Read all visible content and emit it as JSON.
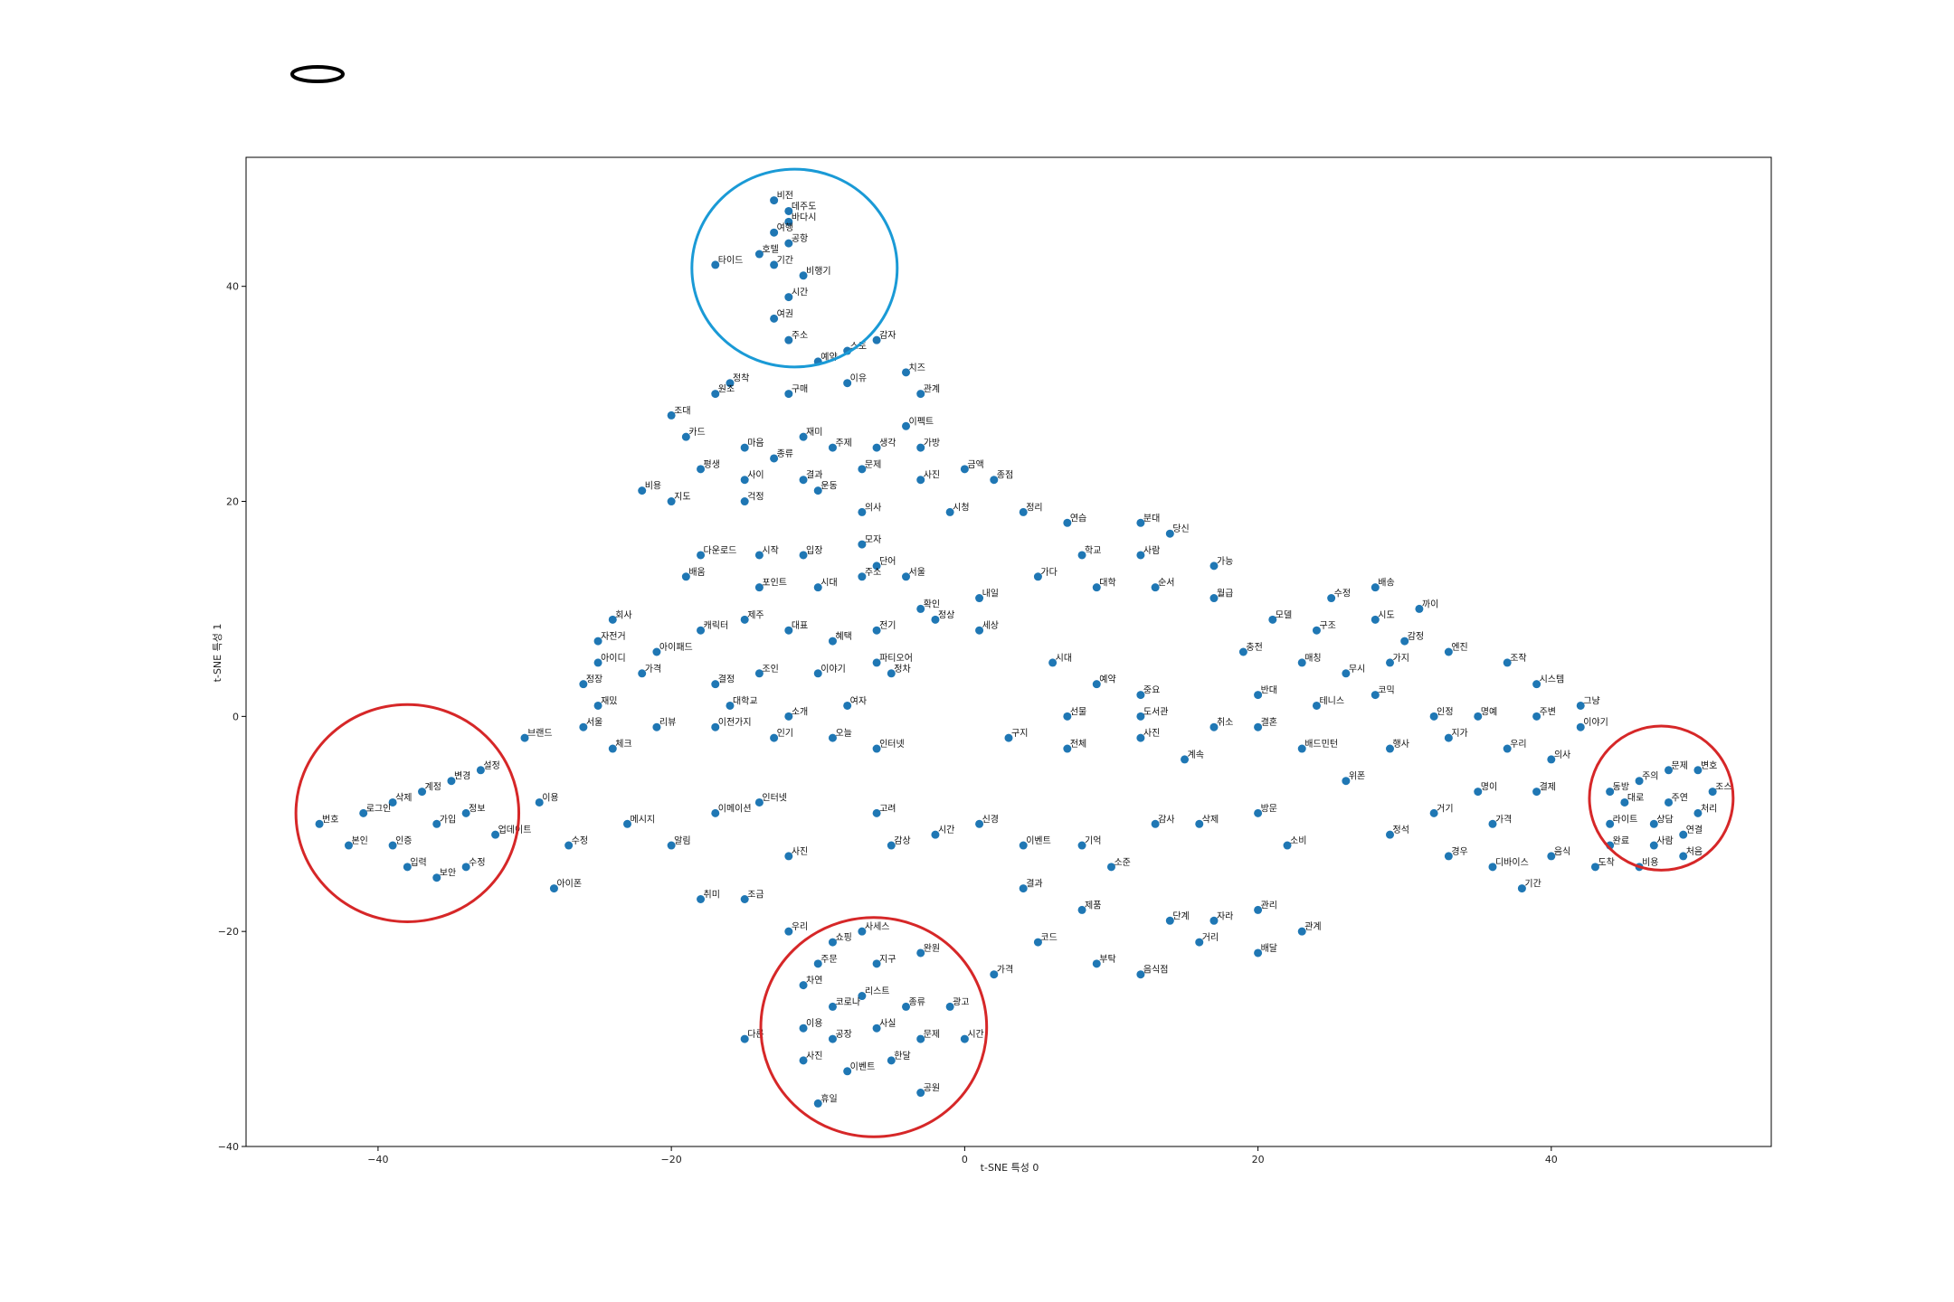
{
  "chart_data": {
    "type": "scatter",
    "xlabel": "t-SNE 특성 0",
    "ylabel": "t-SNE 특성 1",
    "xlim": [
      -49,
      55
    ],
    "ylim": [
      -40,
      52
    ],
    "xticks": [
      -40,
      -20,
      0,
      20,
      40
    ],
    "yticks": [
      -40,
      -20,
      0,
      20,
      40
    ],
    "grid": false,
    "marker_color": "#1f77b4",
    "points": [
      {
        "x": -13,
        "y": 48,
        "label": "비전"
      },
      {
        "x": -12,
        "y": 47,
        "label": "데주도"
      },
      {
        "x": -12,
        "y": 46,
        "label": "바다시"
      },
      {
        "x": -13,
        "y": 45,
        "label": "여행"
      },
      {
        "x": -12,
        "y": 44,
        "label": "공항"
      },
      {
        "x": -17,
        "y": 42,
        "label": "타이드"
      },
      {
        "x": -14,
        "y": 43,
        "label": "호텔"
      },
      {
        "x": -13,
        "y": 42,
        "label": "기간"
      },
      {
        "x": -11,
        "y": 41,
        "label": "비행기"
      },
      {
        "x": -12,
        "y": 39,
        "label": "시간"
      },
      {
        "x": -13,
        "y": 37,
        "label": "여권"
      },
      {
        "x": -12,
        "y": 35,
        "label": "주소"
      },
      {
        "x": -10,
        "y": 33,
        "label": "예약"
      },
      {
        "x": -8,
        "y": 34,
        "label": "스토"
      },
      {
        "x": -6,
        "y": 35,
        "label": "감자"
      },
      {
        "x": -16,
        "y": 31,
        "label": "정착"
      },
      {
        "x": -17,
        "y": 30,
        "label": "원조"
      },
      {
        "x": -12,
        "y": 30,
        "label": "구매"
      },
      {
        "x": -8,
        "y": 31,
        "label": "이유"
      },
      {
        "x": -4,
        "y": 32,
        "label": "치즈"
      },
      {
        "x": -3,
        "y": 30,
        "label": "관계"
      },
      {
        "x": -20,
        "y": 28,
        "label": "조대"
      },
      {
        "x": -19,
        "y": 26,
        "label": "카드"
      },
      {
        "x": -11,
        "y": 26,
        "label": "재미"
      },
      {
        "x": -4,
        "y": 27,
        "label": "이펙트"
      },
      {
        "x": -15,
        "y": 25,
        "label": "마음"
      },
      {
        "x": -13,
        "y": 24,
        "label": "종류"
      },
      {
        "x": -9,
        "y": 25,
        "label": "주제"
      },
      {
        "x": -6,
        "y": 25,
        "label": "생각"
      },
      {
        "x": -3,
        "y": 25,
        "label": "가방"
      },
      {
        "x": -18,
        "y": 23,
        "label": "평생"
      },
      {
        "x": -15,
        "y": 22,
        "label": "사이"
      },
      {
        "x": -11,
        "y": 22,
        "label": "결과"
      },
      {
        "x": -7,
        "y": 23,
        "label": "문제"
      },
      {
        "x": -3,
        "y": 22,
        "label": "사진"
      },
      {
        "x": 0,
        "y": 23,
        "label": "금액"
      },
      {
        "x": 2,
        "y": 22,
        "label": "종점"
      },
      {
        "x": -22,
        "y": 21,
        "label": "비용"
      },
      {
        "x": -20,
        "y": 20,
        "label": "지도"
      },
      {
        "x": -15,
        "y": 20,
        "label": "걱정"
      },
      {
        "x": -10,
        "y": 21,
        "label": "운동"
      },
      {
        "x": -7,
        "y": 19,
        "label": "의사"
      },
      {
        "x": -1,
        "y": 19,
        "label": "시청"
      },
      {
        "x": 4,
        "y": 19,
        "label": "정리"
      },
      {
        "x": 7,
        "y": 18,
        "label": "연습"
      },
      {
        "x": 12,
        "y": 18,
        "label": "분대"
      },
      {
        "x": 14,
        "y": 17,
        "label": "당신"
      },
      {
        "x": 8,
        "y": 15,
        "label": "학교"
      },
      {
        "x": 12,
        "y": 15,
        "label": "사람"
      },
      {
        "x": 17,
        "y": 14,
        "label": "가능"
      },
      {
        "x": -18,
        "y": 15,
        "label": "다운로드"
      },
      {
        "x": -14,
        "y": 15,
        "label": "시작"
      },
      {
        "x": -11,
        "y": 15,
        "label": "입장"
      },
      {
        "x": -7,
        "y": 16,
        "label": "모자"
      },
      {
        "x": -6,
        "y": 14,
        "label": "단어"
      },
      {
        "x": -19,
        "y": 13,
        "label": "배움"
      },
      {
        "x": -14,
        "y": 12,
        "label": "포인트"
      },
      {
        "x": -10,
        "y": 12,
        "label": "시대"
      },
      {
        "x": -7,
        "y": 13,
        "label": "주소"
      },
      {
        "x": -4,
        "y": 13,
        "label": "서울"
      },
      {
        "x": -3,
        "y": 10,
        "label": "확인"
      },
      {
        "x": 1,
        "y": 11,
        "label": "내일"
      },
      {
        "x": 5,
        "y": 13,
        "label": "가다"
      },
      {
        "x": 9,
        "y": 12,
        "label": "대학"
      },
      {
        "x": 13,
        "y": 12,
        "label": "순서"
      },
      {
        "x": 17,
        "y": 11,
        "label": "월급"
      },
      {
        "x": -24,
        "y": 9,
        "label": "회사"
      },
      {
        "x": -25,
        "y": 7,
        "label": "자전거"
      },
      {
        "x": -25,
        "y": 5,
        "label": "아이디"
      },
      {
        "x": -21,
        "y": 6,
        "label": "아이패드"
      },
      {
        "x": -18,
        "y": 8,
        "label": "캐릭터"
      },
      {
        "x": -15,
        "y": 9,
        "label": "제주"
      },
      {
        "x": -12,
        "y": 8,
        "label": "대표"
      },
      {
        "x": -9,
        "y": 7,
        "label": "혜택"
      },
      {
        "x": -6,
        "y": 8,
        "label": "전기"
      },
      {
        "x": -2,
        "y": 9,
        "label": "정상"
      },
      {
        "x": 1,
        "y": 8,
        "label": "세상"
      },
      {
        "x": -26,
        "y": 3,
        "label": "정장"
      },
      {
        "x": -22,
        "y": 4,
        "label": "가격"
      },
      {
        "x": -17,
        "y": 3,
        "label": "결정"
      },
      {
        "x": -14,
        "y": 4,
        "label": "조인"
      },
      {
        "x": -10,
        "y": 4,
        "label": "이야기"
      },
      {
        "x": -6,
        "y": 5,
        "label": "파티오어"
      },
      {
        "x": -5,
        "y": 4,
        "label": "정차"
      },
      {
        "x": 6,
        "y": 5,
        "label": "시대"
      },
      {
        "x": 9,
        "y": 3,
        "label": "예약"
      },
      {
        "x": 12,
        "y": 2,
        "label": "중요"
      },
      {
        "x": -25,
        "y": 1,
        "label": "재밌"
      },
      {
        "x": -16,
        "y": 1,
        "label": "대학교"
      },
      {
        "x": -12,
        "y": 0,
        "label": "소개"
      },
      {
        "x": -8,
        "y": 1,
        "label": "여자"
      },
      {
        "x": 7,
        "y": 0,
        "label": "선물"
      },
      {
        "x": 12,
        "y": 0,
        "label": "도서관"
      },
      {
        "x": 17,
        "y": -1,
        "label": "취소"
      },
      {
        "x": -30,
        "y": -2,
        "label": "브랜드"
      },
      {
        "x": -26,
        "y": -1,
        "label": "서울"
      },
      {
        "x": -24,
        "y": -3,
        "label": "체크"
      },
      {
        "x": -21,
        "y": -1,
        "label": "리뷰"
      },
      {
        "x": -17,
        "y": -1,
        "label": "이전가지"
      },
      {
        "x": -13,
        "y": -2,
        "label": "인기"
      },
      {
        "x": -9,
        "y": -2,
        "label": "오늘"
      },
      {
        "x": -6,
        "y": -3,
        "label": "인터넷"
      },
      {
        "x": 3,
        "y": -2,
        "label": "구지"
      },
      {
        "x": 7,
        "y": -3,
        "label": "전체"
      },
      {
        "x": 12,
        "y": -2,
        "label": "사진"
      },
      {
        "x": 15,
        "y": -4,
        "label": "계속"
      },
      {
        "x": 20,
        "y": -1,
        "label": "결혼"
      },
      {
        "x": -44,
        "y": -10,
        "label": "번호"
      },
      {
        "x": -41,
        "y": -9,
        "label": "로그인"
      },
      {
        "x": -39,
        "y": -8,
        "label": "삭제"
      },
      {
        "x": -37,
        "y": -7,
        "label": "계정"
      },
      {
        "x": -35,
        "y": -6,
        "label": "변경"
      },
      {
        "x": -33,
        "y": -5,
        "label": "설정"
      },
      {
        "x": -42,
        "y": -12,
        "label": "본인"
      },
      {
        "x": -39,
        "y": -12,
        "label": "인증"
      },
      {
        "x": -38,
        "y": -14,
        "label": "입력"
      },
      {
        "x": -36,
        "y": -10,
        "label": "가입"
      },
      {
        "x": -34,
        "y": -9,
        "label": "정보"
      },
      {
        "x": -32,
        "y": -11,
        "label": "업데이트"
      },
      {
        "x": -36,
        "y": -15,
        "label": "보안"
      },
      {
        "x": -34,
        "y": -14,
        "label": "수정"
      },
      {
        "x": -29,
        "y": -8,
        "label": "이용"
      },
      {
        "x": -27,
        "y": -12,
        "label": "수정"
      },
      {
        "x": -28,
        "y": -16,
        "label": "아이폰"
      },
      {
        "x": -23,
        "y": -10,
        "label": "메시지"
      },
      {
        "x": -20,
        "y": -12,
        "label": "알림"
      },
      {
        "x": -17,
        "y": -9,
        "label": "이메이션"
      },
      {
        "x": -14,
        "y": -8,
        "label": "인터넷"
      },
      {
        "x": -12,
        "y": -13,
        "label": "사진"
      },
      {
        "x": -18,
        "y": -17,
        "label": "취미"
      },
      {
        "x": -15,
        "y": -17,
        "label": "조금"
      },
      {
        "x": -6,
        "y": -9,
        "label": "고려"
      },
      {
        "x": -5,
        "y": -12,
        "label": "감상"
      },
      {
        "x": -2,
        "y": -11,
        "label": "시간"
      },
      {
        "x": 1,
        "y": -10,
        "label": "신경"
      },
      {
        "x": 4,
        "y": -12,
        "label": "이벤트"
      },
      {
        "x": 8,
        "y": -12,
        "label": "기억"
      },
      {
        "x": 13,
        "y": -10,
        "label": "감사"
      },
      {
        "x": 16,
        "y": -10,
        "label": "삭제"
      },
      {
        "x": 20,
        "y": -9,
        "label": "방문"
      },
      {
        "x": 22,
        "y": -12,
        "label": "소비"
      },
      {
        "x": 10,
        "y": -14,
        "label": "소준"
      },
      {
        "x": 4,
        "y": -16,
        "label": "결과"
      },
      {
        "x": 8,
        "y": -18,
        "label": "제품"
      },
      {
        "x": 14,
        "y": -19,
        "label": "단계"
      },
      {
        "x": 17,
        "y": -19,
        "label": "자라"
      },
      {
        "x": 20,
        "y": -18,
        "label": "관리"
      },
      {
        "x": 23,
        "y": -20,
        "label": "관계"
      },
      {
        "x": 5,
        "y": -21,
        "label": "코드"
      },
      {
        "x": 9,
        "y": -23,
        "label": "부탁"
      },
      {
        "x": 12,
        "y": -24,
        "label": "음식점"
      },
      {
        "x": 16,
        "y": -21,
        "label": "거리"
      },
      {
        "x": 20,
        "y": -22,
        "label": "배달"
      },
      {
        "x": 2,
        "y": -24,
        "label": "가격"
      },
      {
        "x": -12,
        "y": -20,
        "label": "우리"
      },
      {
        "x": -9,
        "y": -21,
        "label": "쇼핑"
      },
      {
        "x": -7,
        "y": -20,
        "label": "사세스"
      },
      {
        "x": -10,
        "y": -23,
        "label": "주문"
      },
      {
        "x": -6,
        "y": -23,
        "label": "지구"
      },
      {
        "x": -3,
        "y": -22,
        "label": "완원"
      },
      {
        "x": -11,
        "y": -25,
        "label": "차연"
      },
      {
        "x": -9,
        "y": -27,
        "label": "코로나"
      },
      {
        "x": -7,
        "y": -26,
        "label": "리스트"
      },
      {
        "x": -4,
        "y": -27,
        "label": "종류"
      },
      {
        "x": -1,
        "y": -27,
        "label": "광고"
      },
      {
        "x": -11,
        "y": -29,
        "label": "이용"
      },
      {
        "x": -9,
        "y": -30,
        "label": "공장"
      },
      {
        "x": -6,
        "y": -29,
        "label": "사실"
      },
      {
        "x": -3,
        "y": -30,
        "label": "문제"
      },
      {
        "x": 0,
        "y": -30,
        "label": "시간"
      },
      {
        "x": -15,
        "y": -30,
        "label": "다른"
      },
      {
        "x": -11,
        "y": -32,
        "label": "사진"
      },
      {
        "x": -8,
        "y": -33,
        "label": "이벤트"
      },
      {
        "x": -5,
        "y": -32,
        "label": "한달"
      },
      {
        "x": -10,
        "y": -36,
        "label": "휴일"
      },
      {
        "x": -3,
        "y": -35,
        "label": "공원"
      },
      {
        "x": 25,
        "y": 11,
        "label": "수정"
      },
      {
        "x": 28,
        "y": 12,
        "label": "배송"
      },
      {
        "x": 31,
        "y": 10,
        "label": "까이"
      },
      {
        "x": 21,
        "y": 9,
        "label": "모델"
      },
      {
        "x": 24,
        "y": 8,
        "label": "구조"
      },
      {
        "x": 28,
        "y": 9,
        "label": "시도"
      },
      {
        "x": 30,
        "y": 7,
        "label": "감정"
      },
      {
        "x": 19,
        "y": 6,
        "label": "충전"
      },
      {
        "x": 23,
        "y": 5,
        "label": "매칭"
      },
      {
        "x": 26,
        "y": 4,
        "label": "무시"
      },
      {
        "x": 29,
        "y": 5,
        "label": "가지"
      },
      {
        "x": 33,
        "y": 6,
        "label": "엔진"
      },
      {
        "x": 37,
        "y": 5,
        "label": "조작"
      },
      {
        "x": 39,
        "y": 3,
        "label": "시스템"
      },
      {
        "x": 42,
        "y": 1,
        "label": "그냥"
      },
      {
        "x": 20,
        "y": 2,
        "label": "반대"
      },
      {
        "x": 24,
        "y": 1,
        "label": "테니스"
      },
      {
        "x": 28,
        "y": 2,
        "label": "코믹"
      },
      {
        "x": 32,
        "y": 0,
        "label": "인정"
      },
      {
        "x": 35,
        "y": 0,
        "label": "명예"
      },
      {
        "x": 39,
        "y": 0,
        "label": "주변"
      },
      {
        "x": 42,
        "y": -1,
        "label": "이야기"
      },
      {
        "x": 23,
        "y": -3,
        "label": "배드민턴"
      },
      {
        "x": 29,
        "y": -3,
        "label": "행사"
      },
      {
        "x": 33,
        "y": -2,
        "label": "지가"
      },
      {
        "x": 37,
        "y": -3,
        "label": "우리"
      },
      {
        "x": 40,
        "y": -4,
        "label": "의사"
      },
      {
        "x": 26,
        "y": -6,
        "label": "위폰"
      },
      {
        "x": 35,
        "y": -7,
        "label": "명이"
      },
      {
        "x": 39,
        "y": -7,
        "label": "결제"
      },
      {
        "x": 32,
        "y": -9,
        "label": "거기"
      },
      {
        "x": 36,
        "y": -10,
        "label": "가격"
      },
      {
        "x": 29,
        "y": -11,
        "label": "정석"
      },
      {
        "x": 33,
        "y": -13,
        "label": "경우"
      },
      {
        "x": 36,
        "y": -14,
        "label": "디바이스"
      },
      {
        "x": 40,
        "y": -13,
        "label": "음식"
      },
      {
        "x": 43,
        "y": -14,
        "label": "도착"
      },
      {
        "x": 38,
        "y": -16,
        "label": "기간"
      },
      {
        "x": 44,
        "y": -7,
        "label": "동방"
      },
      {
        "x": 46,
        "y": -6,
        "label": "주의"
      },
      {
        "x": 48,
        "y": -5,
        "label": "문제"
      },
      {
        "x": 50,
        "y": -5,
        "label": "변호"
      },
      {
        "x": 45,
        "y": -8,
        "label": "대로"
      },
      {
        "x": 48,
        "y": -8,
        "label": "주연"
      },
      {
        "x": 51,
        "y": -7,
        "label": "조스"
      },
      {
        "x": 44,
        "y": -10,
        "label": "라이트"
      },
      {
        "x": 47,
        "y": -10,
        "label": "상담"
      },
      {
        "x": 50,
        "y": -9,
        "label": "처리"
      },
      {
        "x": 44,
        "y": -12,
        "label": "완료"
      },
      {
        "x": 47,
        "y": -12,
        "label": "사람"
      },
      {
        "x": 49,
        "y": -11,
        "label": "연결"
      },
      {
        "x": 46,
        "y": -14,
        "label": "비용"
      },
      {
        "x": 49,
        "y": -13,
        "label": "처음"
      }
    ],
    "annotations": [
      {
        "shape": "ellipse",
        "color": "#1a9ad6",
        "cx": -11.6,
        "cy": 41.7,
        "rx": 7.0,
        "ry": 9.2
      },
      {
        "shape": "ellipse",
        "color": "#d62728",
        "cx": -38.0,
        "cy": -9.0,
        "rx": 7.6,
        "ry": 10.1
      },
      {
        "shape": "ellipse",
        "color": "#d62728",
        "cx": 47.5,
        "cy": -7.6,
        "rx": 4.9,
        "ry": 6.7
      },
      {
        "shape": "ellipse",
        "color": "#d62728",
        "cx": -6.2,
        "cy": -28.9,
        "rx": 7.7,
        "ry": 10.2
      }
    ]
  }
}
